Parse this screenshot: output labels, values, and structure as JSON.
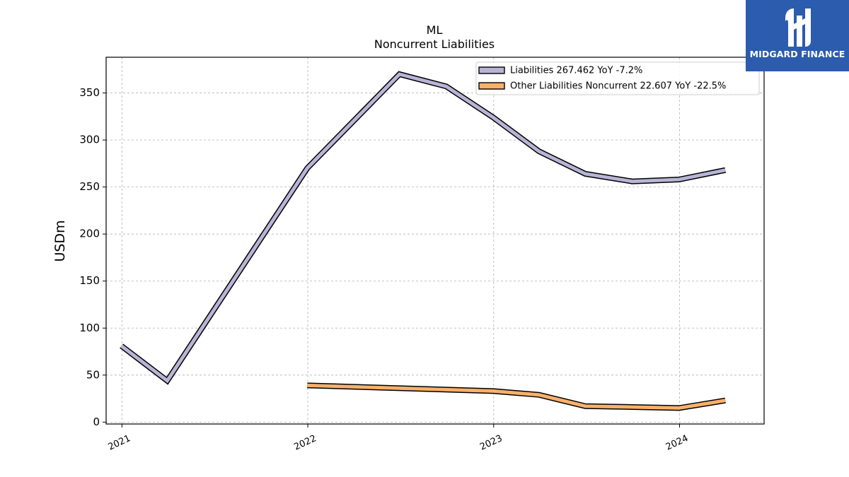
{
  "logo": {
    "text": "MIDGARD FINANCE",
    "icon": "midgard-logo-icon",
    "background": "#2b5cad"
  },
  "chart_data": {
    "type": "line",
    "title_line1": "ML",
    "title_line2": "Noncurrent  Liabilities",
    "xlabel": "",
    "ylabel": "USDm",
    "xlim": [
      "2020-12-01",
      "2024-06-15"
    ],
    "ylim": [
      -2,
      388
    ],
    "yticks": [
      0,
      50,
      100,
      150,
      200,
      250,
      300,
      350
    ],
    "xticks": [
      {
        "date": "2021-01-01",
        "label": "2021"
      },
      {
        "date": "2022-01-01",
        "label": "2022"
      },
      {
        "date": "2023-01-01",
        "label": "2023"
      },
      {
        "date": "2024-01-01",
        "label": "2024"
      }
    ],
    "grid": true,
    "legend_position": "top-right",
    "series": [
      {
        "name": "Liabilities",
        "legend_label": "Liabilities  267.462 YoY -7.2%",
        "color": "#b8b4d6",
        "x": [
          "2020-12-31",
          "2021-03-31",
          "2021-12-31",
          "2022-06-30",
          "2022-09-30",
          "2022-12-31",
          "2023-03-31",
          "2023-06-30",
          "2023-09-30",
          "2023-12-31",
          "2024-03-31"
        ],
        "y": [
          81,
          44,
          270,
          370,
          357,
          324,
          288,
          264,
          256,
          258,
          268
        ]
      },
      {
        "name": "Other Liabilities Noncurrent",
        "legend_label": "Other Liabilities Noncurrent  22.607 YoY -22.5%",
        "color": "#f8b06a",
        "x": [
          "2021-12-31",
          "2022-12-31",
          "2023-03-31",
          "2023-06-30",
          "2023-09-30",
          "2023-12-31",
          "2024-03-31"
        ],
        "y": [
          39,
          33,
          29,
          17,
          16,
          15,
          23
        ]
      }
    ]
  }
}
